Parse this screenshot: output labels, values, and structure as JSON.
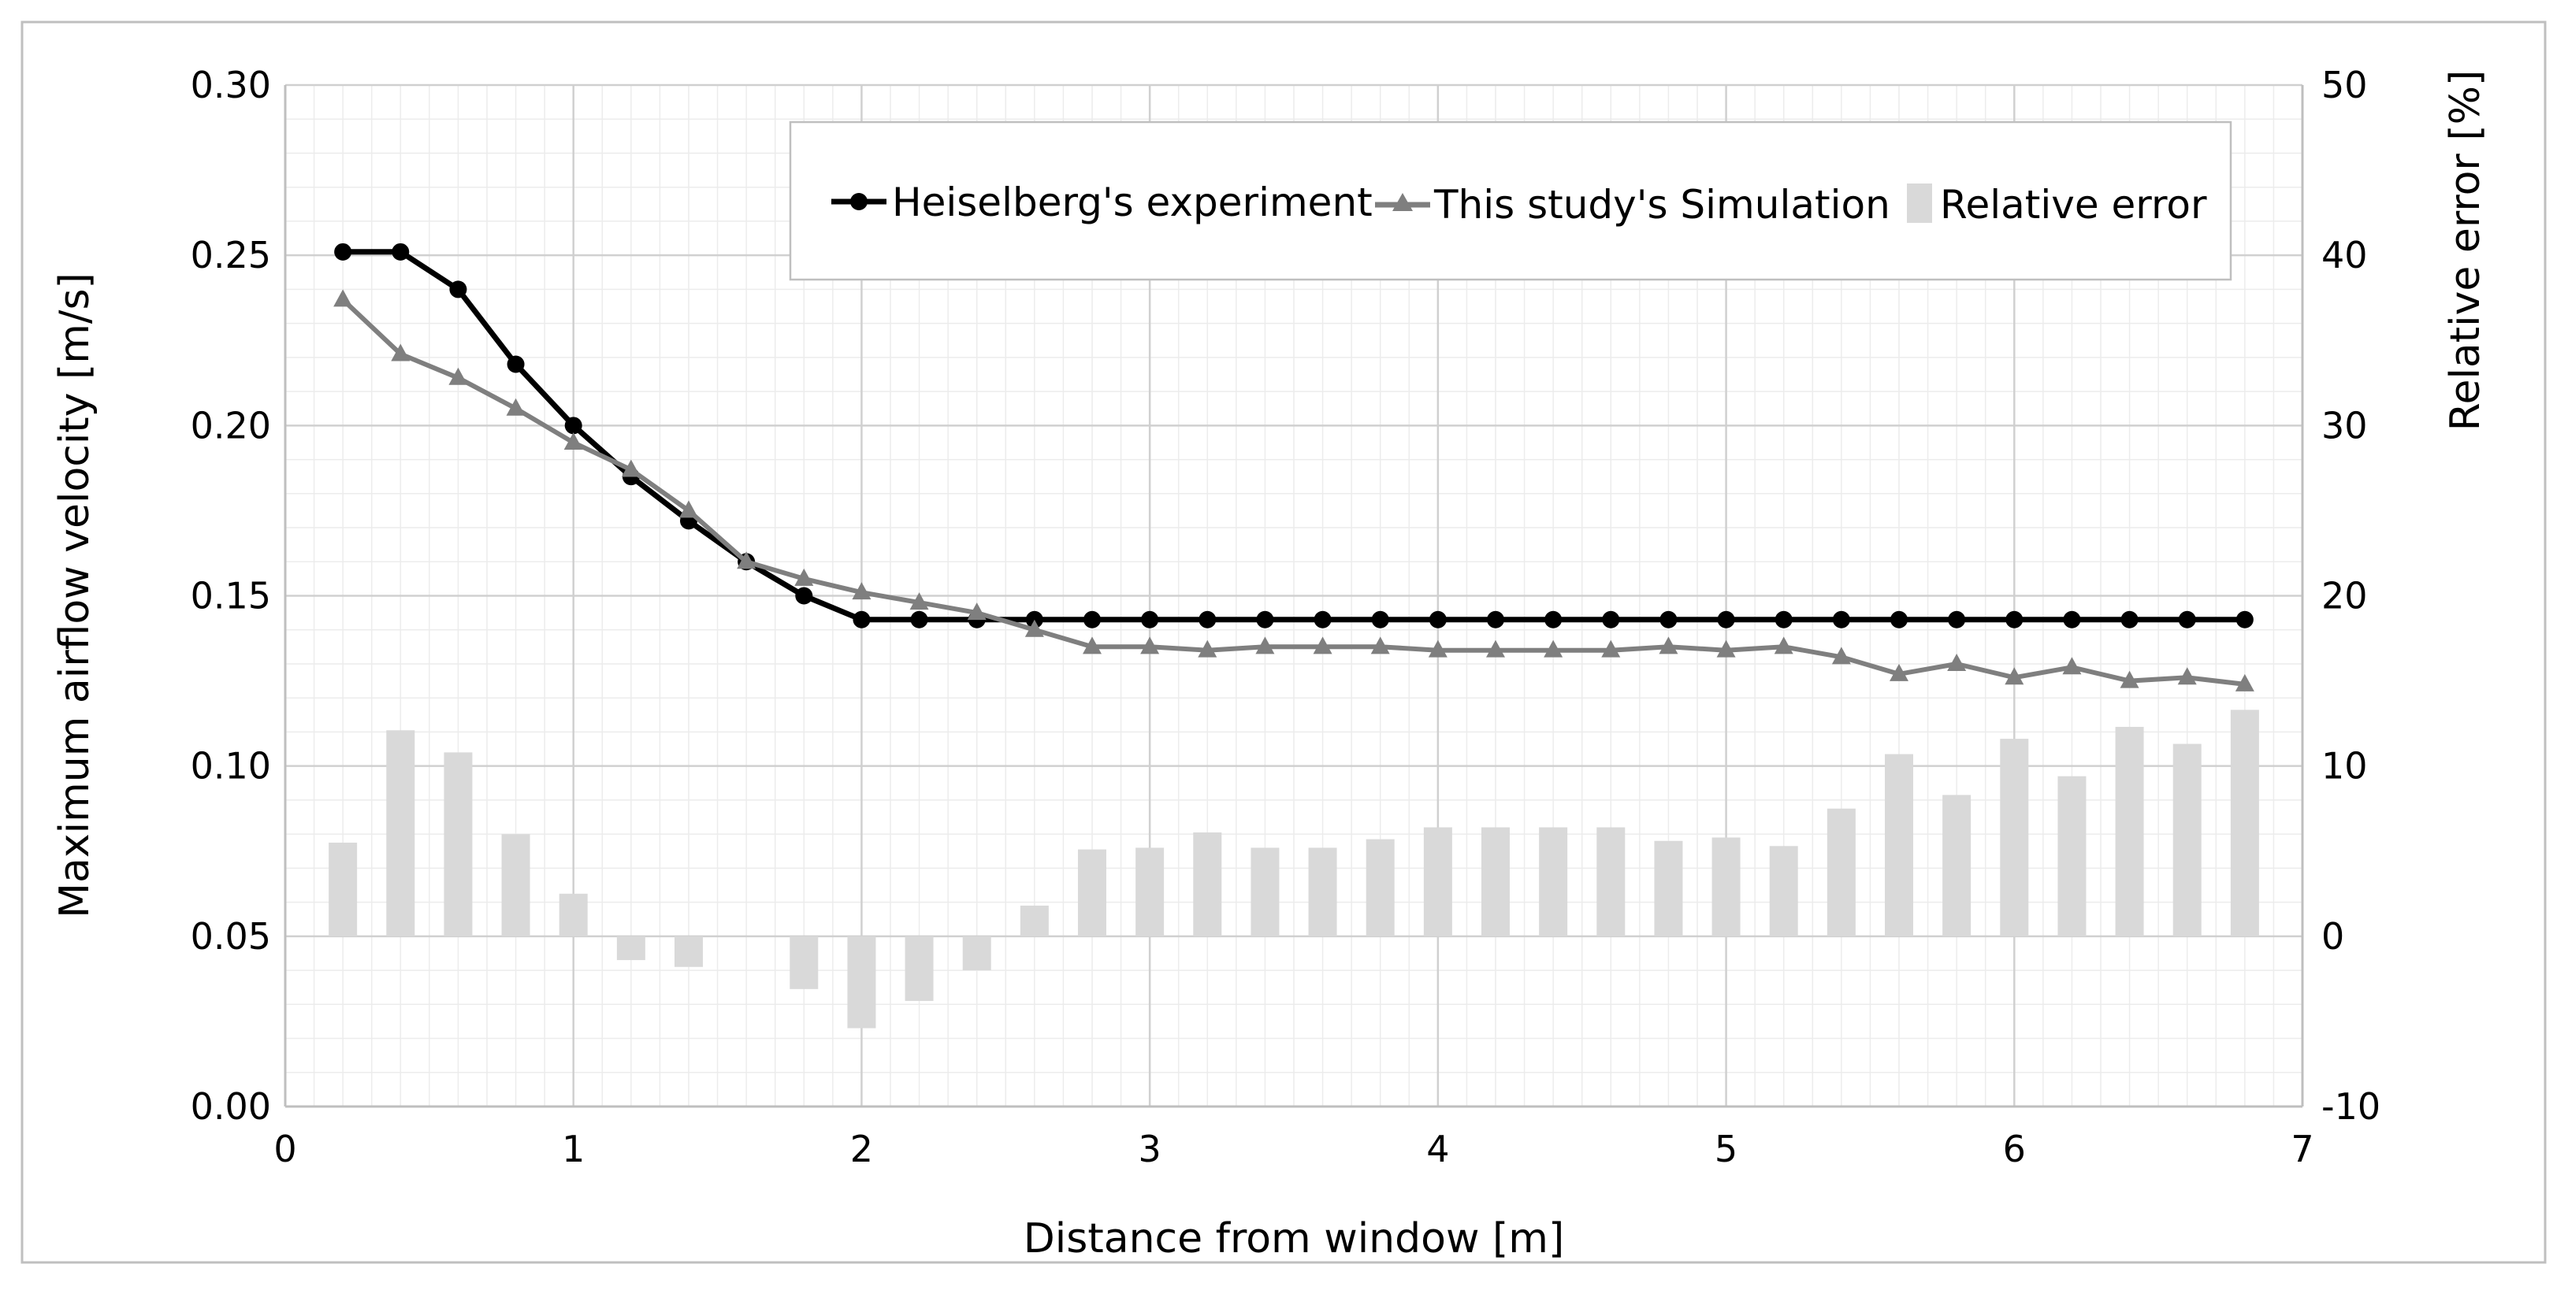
{
  "chart_data": {
    "type": "bar+line",
    "title": "",
    "xlabel": "Distance from window [m]",
    "ylabel": "Maximum airflow velocity  [m/s]",
    "y2label": "Relative error [%]",
    "xlim": [
      0,
      7
    ],
    "ylim": [
      0,
      0.3
    ],
    "y2lim": [
      -10,
      50
    ],
    "grid": true,
    "legend_position": "top-right",
    "x_ticks": [
      "0",
      "1",
      "2",
      "3",
      "4",
      "5",
      "6",
      "7"
    ],
    "y_ticks": [
      "0.00",
      "0.05",
      "0.10",
      "0.15",
      "0.20",
      "0.25",
      "0.30"
    ],
    "y2_ticks": [
      "-10",
      "0",
      "10",
      "20",
      "30",
      "40",
      "50"
    ],
    "x": [
      0.2,
      0.4,
      0.6,
      0.8,
      1.0,
      1.2,
      1.4,
      1.6,
      1.8,
      2.0,
      2.2,
      2.4,
      2.6,
      2.8,
      3.0,
      3.2,
      3.4,
      3.6,
      3.8,
      4.0,
      4.2,
      4.4,
      4.6,
      4.8,
      5.0,
      5.2,
      5.4,
      5.6,
      5.8,
      6.0,
      6.2,
      6.4,
      6.6,
      6.8
    ],
    "series": [
      {
        "name": "Heiselberg's experiment",
        "kind": "line",
        "axis": "left",
        "color": "#000000",
        "marker": "circle",
        "values": [
          0.251,
          0.251,
          0.24,
          0.218,
          0.2,
          0.185,
          0.172,
          0.16,
          0.15,
          0.143,
          0.143,
          0.143,
          0.143,
          0.143,
          0.143,
          0.143,
          0.143,
          0.143,
          0.143,
          0.143,
          0.143,
          0.143,
          0.143,
          0.143,
          0.143,
          0.143,
          0.143,
          0.143,
          0.143,
          0.143,
          0.143,
          0.143,
          0.143,
          0.143
        ]
      },
      {
        "name": "This study's Simulation",
        "kind": "line",
        "axis": "left",
        "color": "#7f7f7f",
        "marker": "triangle",
        "values": [
          0.237,
          0.221,
          0.214,
          0.205,
          0.195,
          0.187,
          0.175,
          0.16,
          0.155,
          0.151,
          0.148,
          0.145,
          0.14,
          0.135,
          0.135,
          0.134,
          0.135,
          0.135,
          0.135,
          0.134,
          0.134,
          0.134,
          0.134,
          0.135,
          0.134,
          0.135,
          0.132,
          0.127,
          0.13,
          0.126,
          0.129,
          0.125,
          0.126,
          0.124
        ]
      },
      {
        "name": "Relative error",
        "kind": "bar",
        "axis": "right",
        "color": "#d9d9d9",
        "values": [
          5.5,
          12.1,
          10.8,
          6.0,
          2.5,
          -1.4,
          -1.8,
          0,
          -3.1,
          -5.4,
          -3.8,
          -2.0,
          1.8,
          5.1,
          5.2,
          6.1,
          5.2,
          5.2,
          5.7,
          6.4,
          6.4,
          6.4,
          6.4,
          5.6,
          5.8,
          5.3,
          7.5,
          10.7,
          8.3,
          11.6,
          9.4,
          12.3,
          11.3,
          13.3
        ]
      }
    ]
  }
}
